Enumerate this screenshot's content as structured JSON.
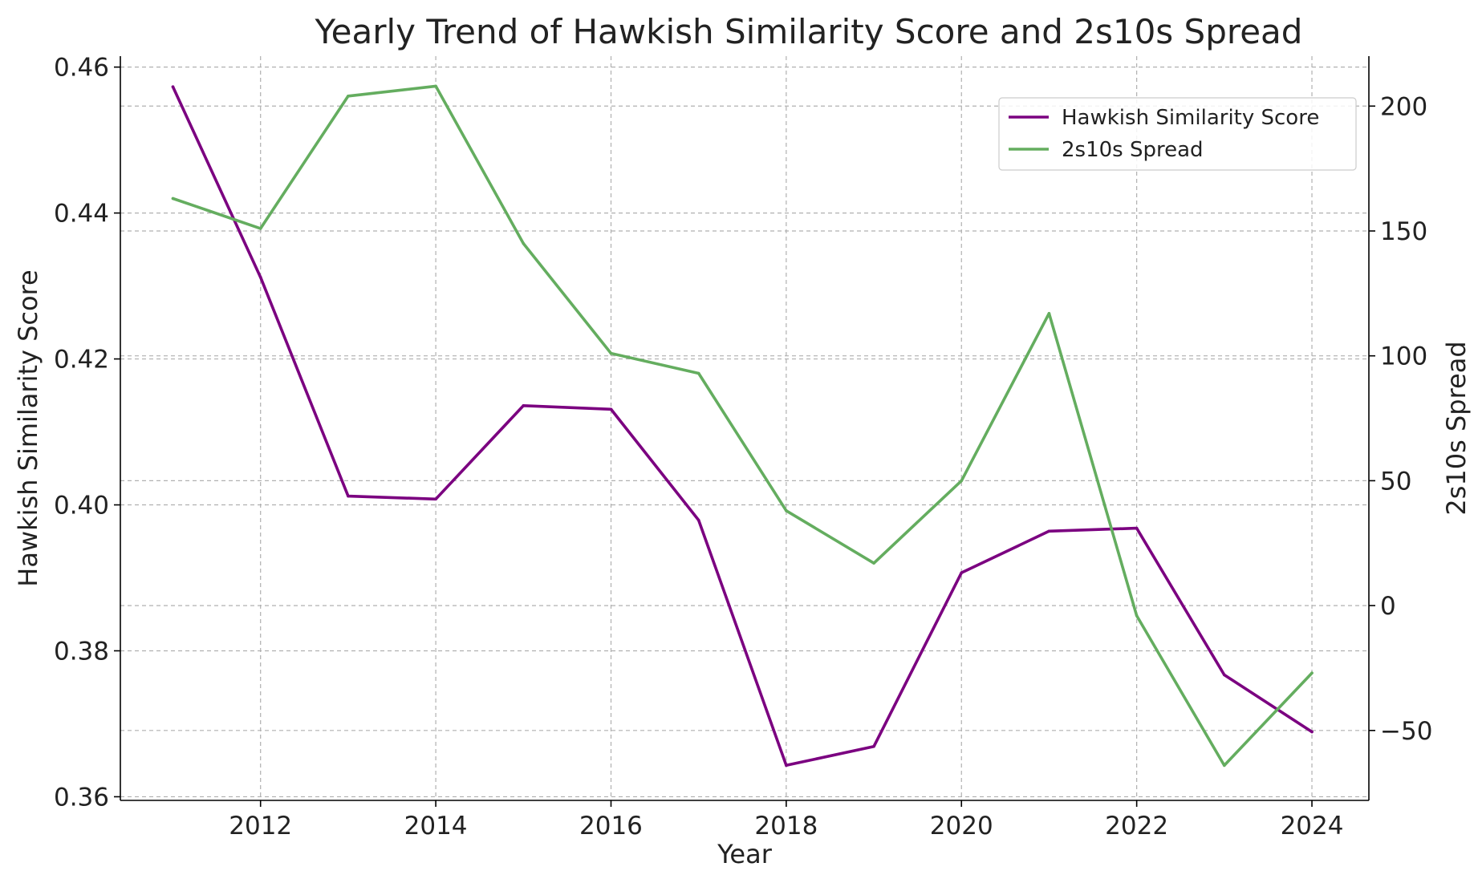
{
  "chart_data": {
    "type": "line",
    "title": "Yearly Trend of Hawkish Similarity Score and 2s10s Spread",
    "xlabel": "Year",
    "ylabel_left": "Hawkish Similarity Score",
    "ylabel_right": "2s10s Spread",
    "x": [
      2011,
      2012,
      2013,
      2014,
      2015,
      2016,
      2017,
      2018,
      2019,
      2020,
      2021,
      2022,
      2023,
      2024
    ],
    "x_ticks": [
      2012,
      2014,
      2016,
      2018,
      2020,
      2022,
      2024
    ],
    "xlim": [
      2010.4,
      2024.65
    ],
    "left_axis": {
      "ylim": [
        0.3595,
        0.4615
      ],
      "ticks": [
        0.36,
        0.38,
        0.4,
        0.42,
        0.44,
        0.46
      ],
      "tick_labels": [
        "0.36",
        "0.38",
        "0.40",
        "0.42",
        "0.44",
        "0.46"
      ]
    },
    "right_axis": {
      "ylim": [
        -78,
        220
      ],
      "ticks": [
        -50,
        0,
        50,
        100,
        150,
        200
      ],
      "tick_labels": [
        "−50",
        "0",
        "50",
        "100",
        "150",
        "200"
      ]
    },
    "grid": true,
    "legend_position": "top-right",
    "series": [
      {
        "name": "Hawkish Similarity Score",
        "axis": "left",
        "color": "#7b0080",
        "values": [
          0.4573,
          0.4312,
          0.4012,
          0.4008,
          0.4136,
          0.4131,
          0.3979,
          0.3643,
          0.3669,
          0.3907,
          0.3964,
          0.3968,
          0.3767,
          0.3689
        ]
      },
      {
        "name": "2s10s Spread",
        "axis": "right",
        "color": "#64ad5f",
        "values": [
          163,
          151,
          204,
          208,
          145,
          101,
          93,
          38,
          17,
          50,
          117,
          -4,
          -64,
          -27
        ]
      }
    ]
  }
}
